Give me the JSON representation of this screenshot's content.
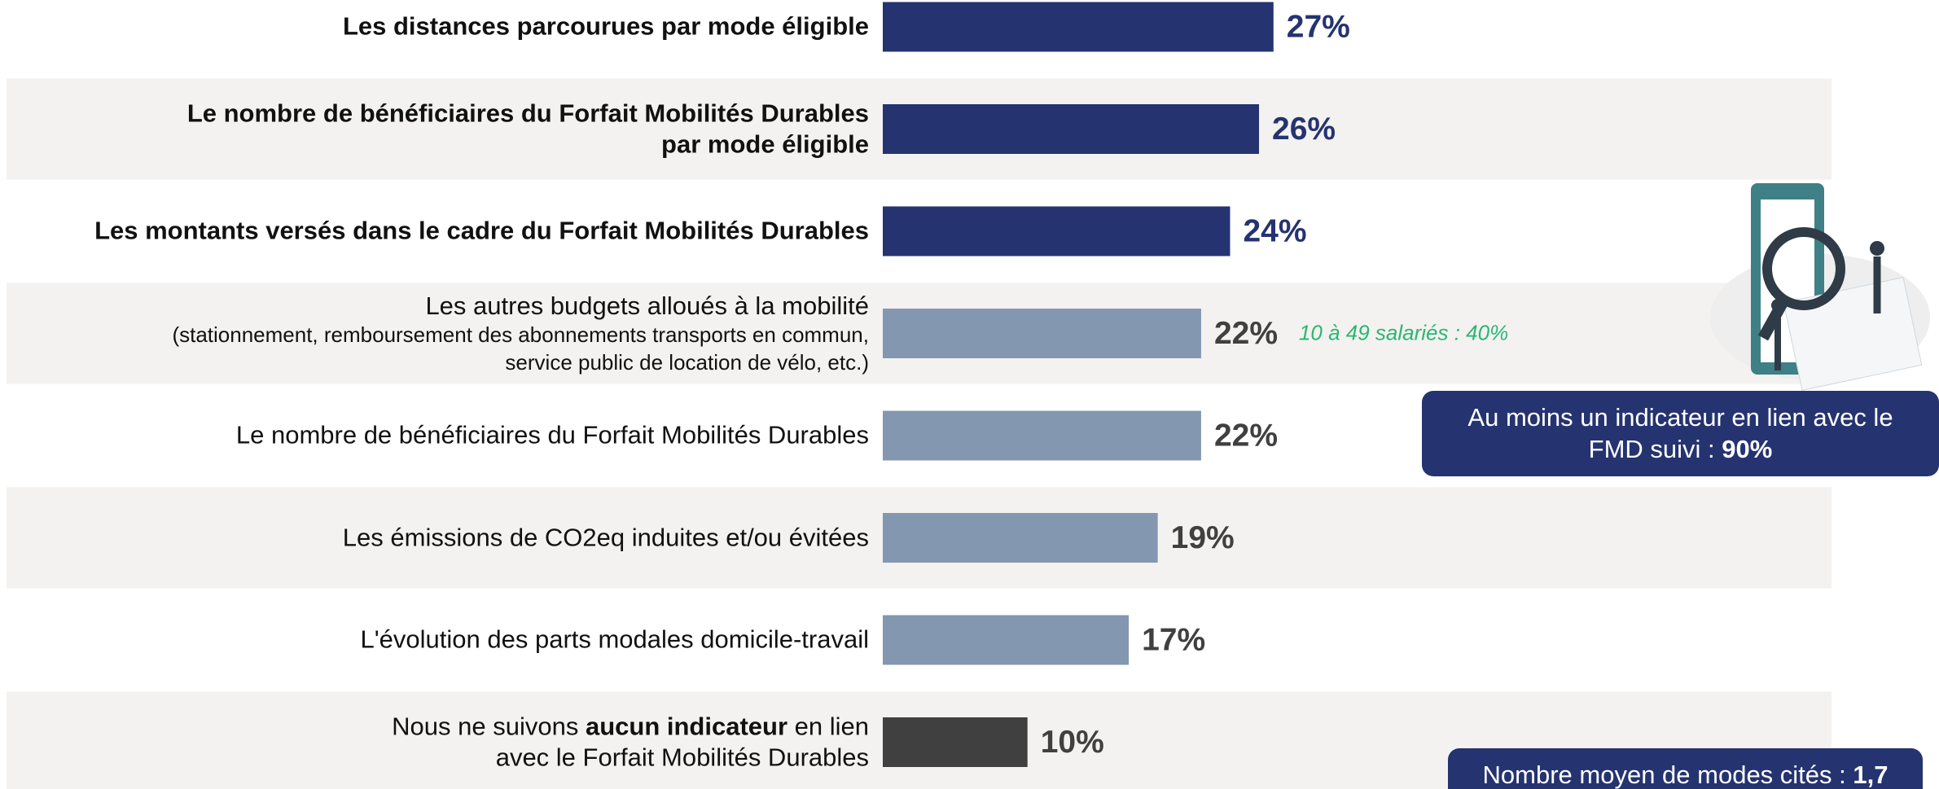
{
  "chart_data": {
    "type": "bar",
    "orientation": "horizontal",
    "categories": [
      "Les distances parcourues par mode éligible",
      "Le nombre de bénéficiaires du Forfait Mobilités Durables\npar mode éligible",
      "Les montants versés dans le cadre du Forfait Mobilités Durables",
      "Les autres budgets alloués à la mobilité",
      "Le nombre de bénéficiaires du Forfait Mobilités Durables",
      "Les émissions de CO2eq induites et/ou évitées",
      "L'évolution des parts modales domicile-travail",
      [
        "Nous ne suivons ",
        "aucun indicateur",
        " en lien\navec le Forfait Mobilités Durables"
      ]
    ],
    "category_details": [
      null,
      null,
      null,
      "(stationnement, remboursement des abonnements transports en commun,\nservice public de location de vélo, etc.)",
      null,
      null,
      null,
      null
    ],
    "bold": [
      true,
      true,
      true,
      false,
      false,
      false,
      false,
      false
    ],
    "values": [
      27,
      26,
      24,
      22,
      22,
      19,
      17,
      10
    ],
    "value_labels": [
      "27%",
      "26%",
      "24%",
      "22%",
      "22%",
      "19%",
      "17%",
      "10%"
    ],
    "colors": [
      "#253370",
      "#253370",
      "#253370",
      "#8497b0",
      "#8497b0",
      "#8497b0",
      "#8497b0",
      "#404040"
    ],
    "label_colors": [
      "#253370",
      "#253370",
      "#253370",
      "#404040",
      "#404040",
      "#404040",
      "#404040",
      "#404040"
    ],
    "annotations": [
      {
        "index": 3,
        "text": "10 à 49 salariés : 40%",
        "color": "#2bb673"
      }
    ],
    "callouts": [
      {
        "text": "Au moins un indicateur en lien avec le\nFMD suivi : ",
        "value": "90%"
      },
      {
        "text": "Nombre moyen de modes cités : ",
        "value": "1,7"
      }
    ]
  }
}
